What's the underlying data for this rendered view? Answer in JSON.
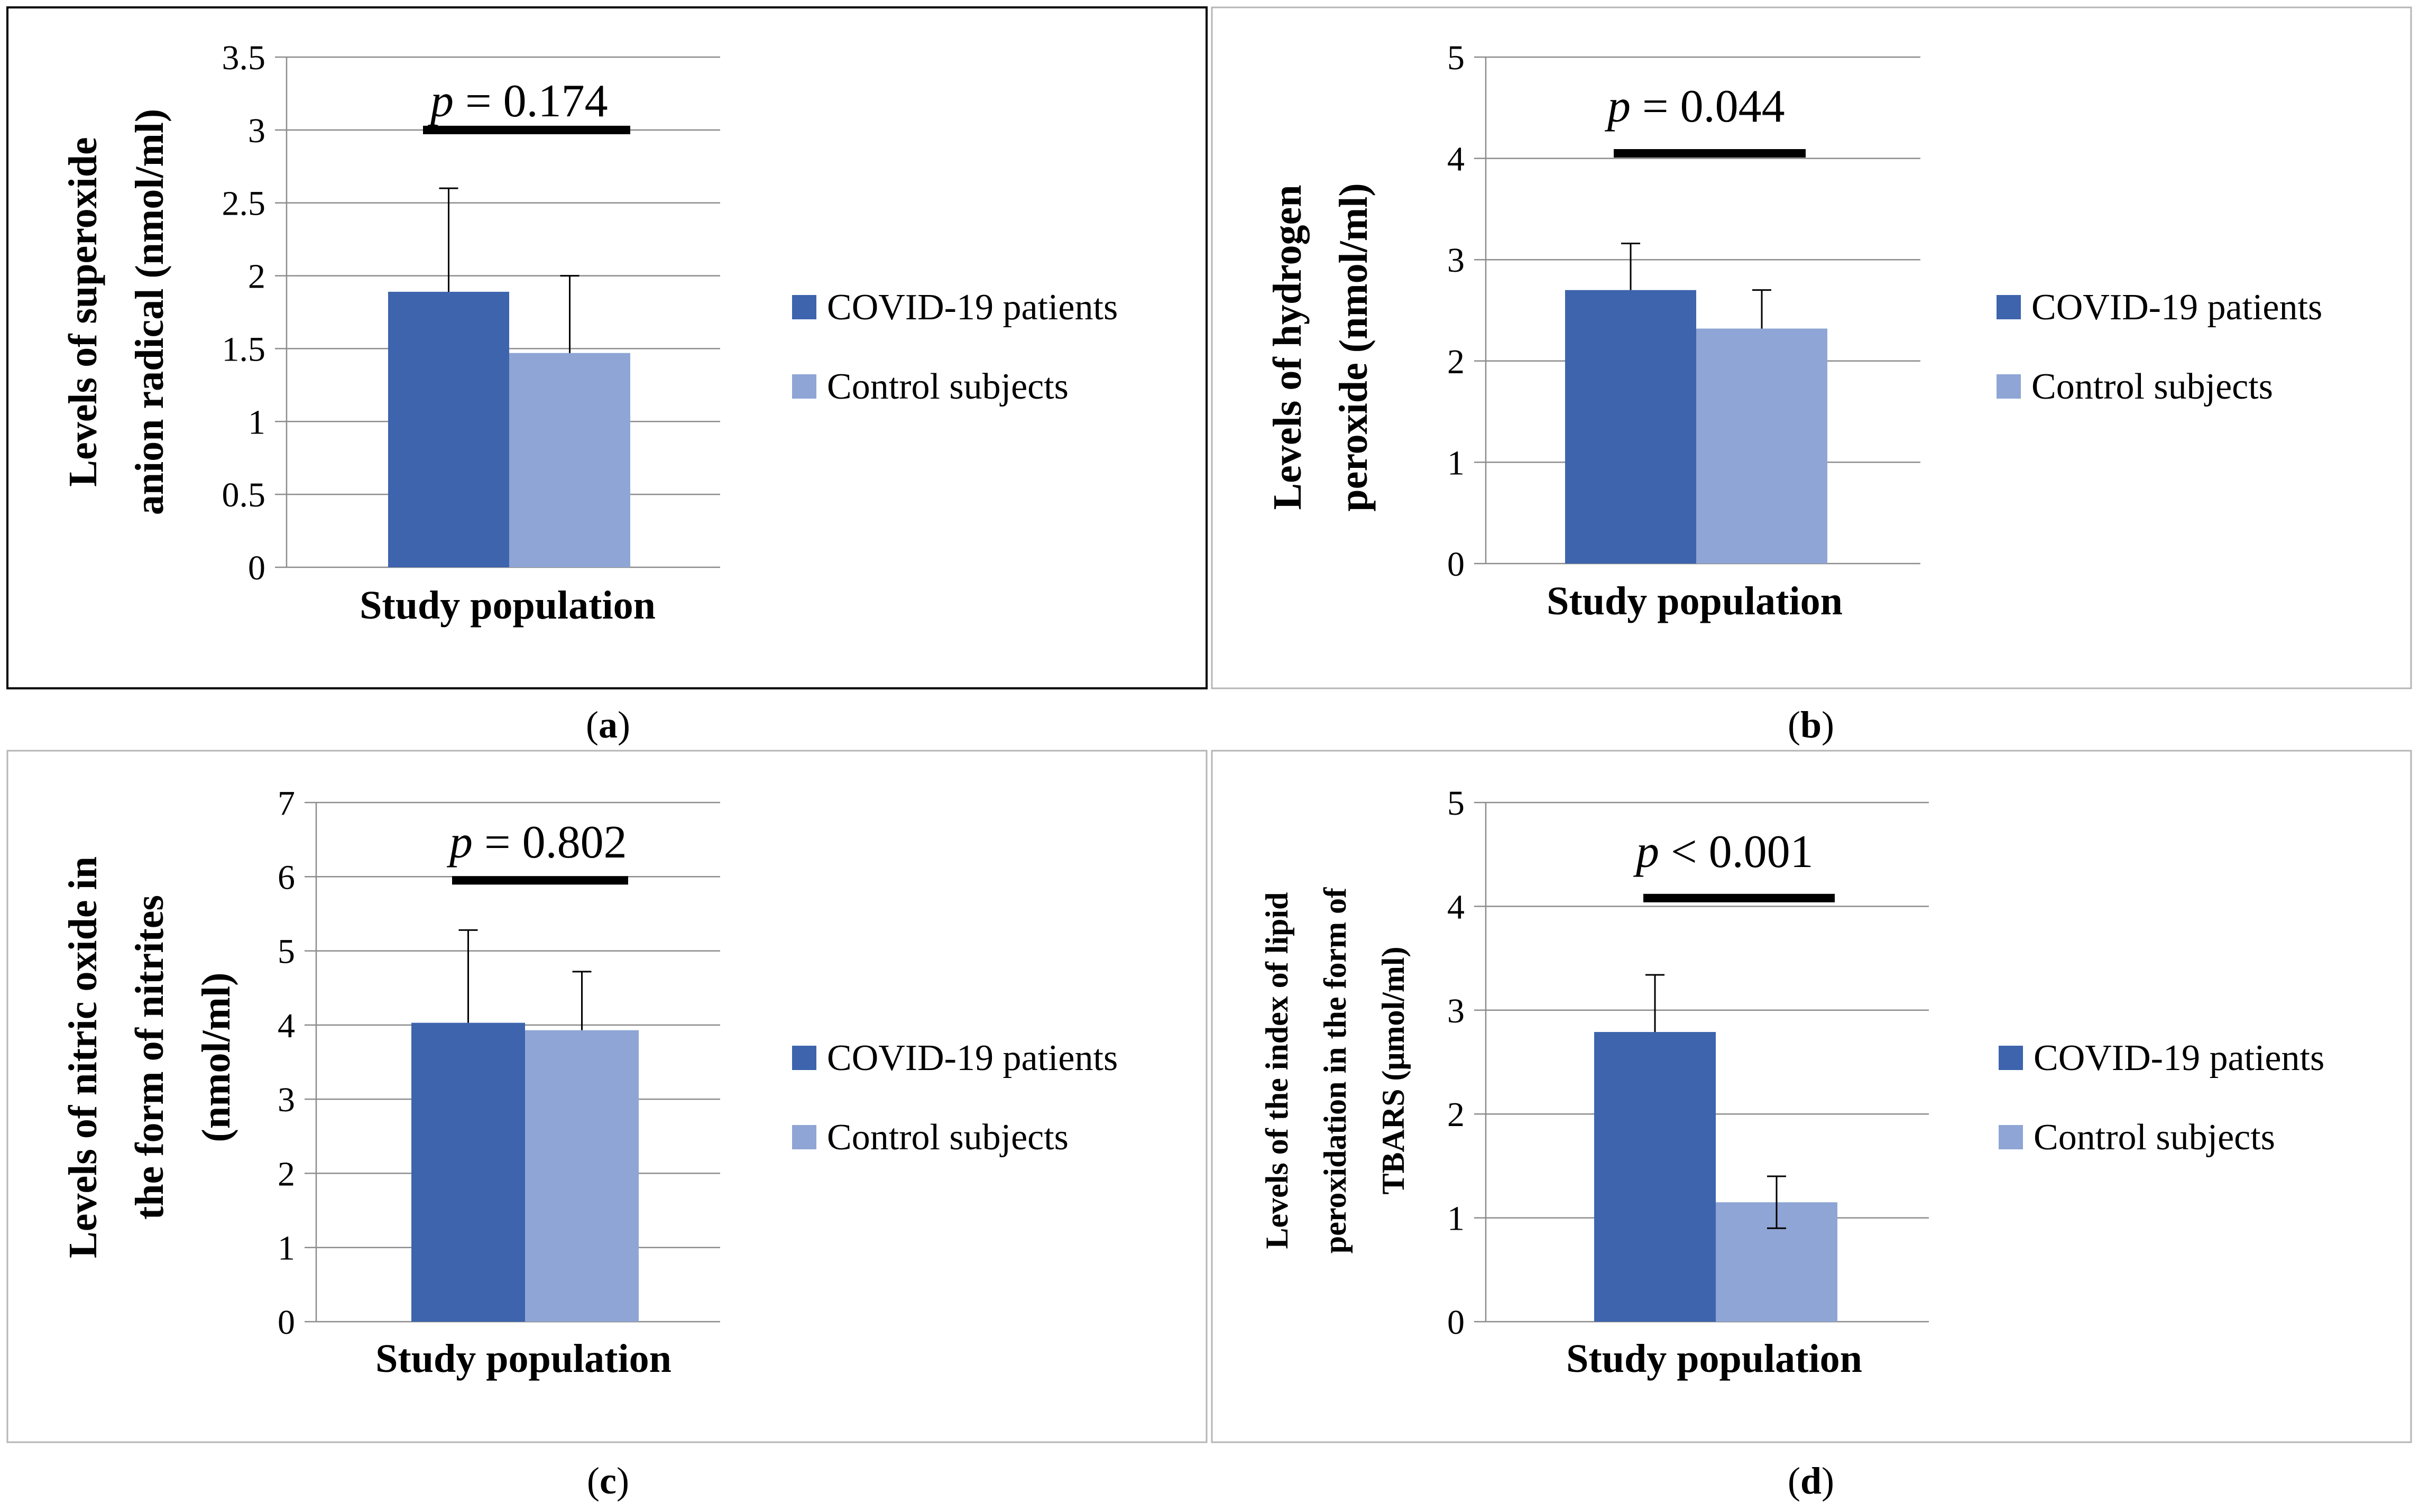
{
  "chart_data": [
    {
      "panel": "a",
      "type": "bar",
      "categories": [
        "Study population"
      ],
      "series": [
        {
          "name": "COVID-19 patients",
          "values": [
            1.89
          ],
          "error": [
            0.71
          ],
          "color": "#3d64ad"
        },
        {
          "name": "Control subjects",
          "values": [
            1.47
          ],
          "error": [
            0.53
          ],
          "color": "#8ea5d5"
        }
      ],
      "xlabel": "Study population",
      "ylabel": [
        "Levels of superoxide",
        "anion radical (nmol/ml)"
      ],
      "ylim": [
        0,
        3.5
      ],
      "ticks": [
        0,
        0.5,
        1,
        1.5,
        2,
        2.5,
        3,
        3.5
      ],
      "tick_labels": [
        "0",
        "0.5",
        "1",
        "1.5",
        "2",
        "2.5",
        "3",
        "3.5"
      ],
      "pvalue": {
        "p": "p",
        "rest": " = 0.174",
        "level": 3.0
      },
      "legend_position": "right",
      "caption": "a"
    },
    {
      "panel": "b",
      "type": "bar",
      "categories": [
        "Study population"
      ],
      "series": [
        {
          "name": "COVID-19 patients",
          "values": [
            2.7
          ],
          "error": [
            0.46
          ],
          "color": "#3d64ad"
        },
        {
          "name": "Control subjects",
          "values": [
            2.32
          ],
          "error": [
            0.38
          ],
          "color": "#8ea5d5"
        }
      ],
      "xlabel": "Study population",
      "ylabel": [
        "Levels of hydrogen",
        "peroxide (nmol/ml)"
      ],
      "ylim": [
        0,
        5
      ],
      "ticks": [
        0,
        1,
        2,
        3,
        4,
        5
      ],
      "tick_labels": [
        "0",
        "1",
        "2",
        "3",
        "4",
        "5"
      ],
      "pvalue": {
        "p": "p",
        "rest": " = 0.044",
        "level": 4.05
      },
      "legend_position": "right",
      "caption": "b"
    },
    {
      "panel": "c",
      "type": "bar",
      "categories": [
        "Study population"
      ],
      "series": [
        {
          "name": "COVID-19 patients",
          "values": [
            4.03
          ],
          "error": [
            1.25
          ],
          "color": "#3d64ad"
        },
        {
          "name": "Control subjects",
          "values": [
            3.93
          ],
          "error": [
            0.79
          ],
          "color": "#8ea5d5"
        }
      ],
      "xlabel": "Study population",
      "ylabel": [
        "Levels of nitric oxide in",
        "the form of nitrites",
        "(nmol/ml)"
      ],
      "ylim": [
        0,
        7
      ],
      "ticks": [
        0,
        1,
        2,
        3,
        4,
        5,
        6,
        7
      ],
      "tick_labels": [
        "0",
        "1",
        "2",
        "3",
        "4",
        "5",
        "6",
        "7"
      ],
      "pvalue": {
        "p": "p",
        "rest": " = 0.802",
        "level": 5.95
      },
      "legend_position": "right",
      "caption": "c"
    },
    {
      "panel": "d",
      "type": "bar",
      "categories": [
        "Study population"
      ],
      "series": [
        {
          "name": "COVID-19 patients",
          "values": [
            2.79
          ],
          "error": [
            0.55
          ],
          "color": "#3d64ad"
        },
        {
          "name": "Control subjects",
          "values": [
            1.15
          ],
          "error": [
            0.25
          ],
          "color": "#8ea5d5"
        }
      ],
      "xlabel": "Study population",
      "ylabel": [
        "Levels of the index of lipid",
        "peroxidation in the form of",
        "TBARS (μmol/ml)"
      ],
      "ylim": [
        0,
        5
      ],
      "ticks": [
        0,
        1,
        2,
        3,
        4,
        5
      ],
      "tick_labels": [
        "0",
        "1",
        "2",
        "3",
        "4",
        "5"
      ],
      "pvalue": {
        "p": "p",
        "rest": " < 0.001",
        "level": 4.08
      },
      "legend_position": "right",
      "caption": "d"
    }
  ]
}
